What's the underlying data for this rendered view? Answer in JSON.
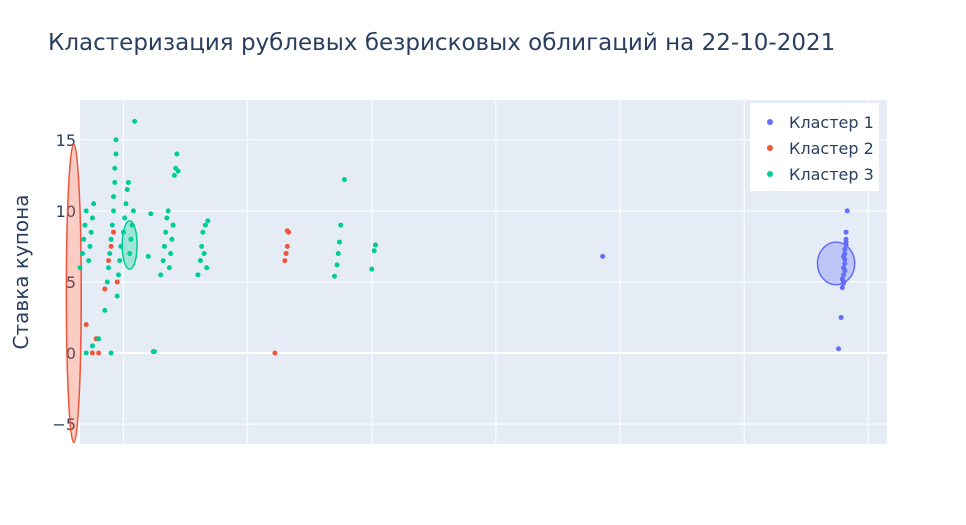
{
  "chart_data": {
    "type": "scatter",
    "title": "Кластеризация рублевых безрисковых облигаций на 22-10-2021",
    "xlabel": "",
    "ylabel": "Ставка купона",
    "xlim": [
      -0.35,
      6.15
    ],
    "ylim": [
      -6.4,
      17.8
    ],
    "x_gridlines": [
      0,
      1,
      2,
      3,
      4,
      5,
      6
    ],
    "x_tick_labels_visible": false,
    "y_ticks": [
      -5,
      0,
      5,
      10,
      15
    ],
    "y_tick_labels": [
      "−5",
      "0",
      "5",
      "10",
      "15"
    ],
    "grid": true,
    "legend_position": "top-right",
    "colors": {
      "plot_background": "#e5ecf6",
      "grid": "#ffffff",
      "text": "#2a3f5f",
      "cluster1": "#636efa",
      "cluster2": "#ef553b",
      "cluster3": "#00cc96"
    },
    "series": [
      {
        "name": "Кластер 1",
        "color": "#636efa",
        "points": [
          [
            3.86,
            6.8
          ],
          [
            5.76,
            0.3
          ],
          [
            5.78,
            2.5
          ],
          [
            5.79,
            4.6
          ],
          [
            5.8,
            5.0
          ],
          [
            5.8,
            5.5
          ],
          [
            5.8,
            6.0
          ],
          [
            5.81,
            6.3
          ],
          [
            5.81,
            6.6
          ],
          [
            5.81,
            7.0
          ],
          [
            5.81,
            7.3
          ],
          [
            5.82,
            7.6
          ],
          [
            5.82,
            8.0
          ],
          [
            5.82,
            8.5
          ],
          [
            5.83,
            10.0
          ],
          [
            5.8,
            6.8
          ],
          [
            5.81,
            5.8
          ],
          [
            5.82,
            7.8
          ],
          [
            5.8,
            4.9
          ],
          [
            5.79,
            5.2
          ]
        ],
        "ellipse": {
          "cx": 5.74,
          "cy": 6.3,
          "rx": 0.15,
          "ry": 1.5
        }
      },
      {
        "name": "Кластер 2",
        "color": "#ef553b",
        "points": [
          [
            -0.55,
            6.5
          ],
          [
            -0.53,
            7.5
          ],
          [
            -0.52,
            9.0
          ],
          [
            -0.51,
            9.5
          ],
          [
            -0.5,
            11.0
          ],
          [
            -0.5,
            8.0
          ],
          [
            -0.49,
            6.8
          ],
          [
            -0.48,
            0.2
          ],
          [
            -0.47,
            0.5
          ],
          [
            -0.47,
            1.0
          ],
          [
            -0.46,
            1.5
          ],
          [
            -0.46,
            2.8
          ],
          [
            -0.45,
            3.5
          ],
          [
            -0.45,
            4.0
          ],
          [
            -0.44,
            4.5
          ],
          [
            -0.44,
            5.2
          ],
          [
            -0.43,
            6.0
          ],
          [
            -0.43,
            7.0
          ],
          [
            -0.42,
            8.0
          ],
          [
            -0.42,
            9.0
          ],
          [
            -0.41,
            10.0
          ],
          [
            -0.41,
            11.0
          ],
          [
            -0.4,
            12.0
          ],
          [
            -0.4,
            13.0
          ],
          [
            -0.39,
            14.0
          ],
          [
            -0.38,
            15.0
          ],
          [
            -0.38,
            11.5
          ],
          [
            -0.39,
            9.5
          ],
          [
            -0.4,
            7.5
          ],
          [
            -0.42,
            5.5
          ],
          [
            -0.45,
            0.0
          ],
          [
            -0.47,
            0.0
          ],
          [
            -0.44,
            0.8
          ],
          [
            -0.43,
            1.2
          ],
          [
            -0.41,
            3.0
          ],
          [
            -0.25,
            0.0
          ],
          [
            -0.22,
            1.0
          ],
          [
            -0.2,
            0.0
          ],
          [
            -0.3,
            2.0
          ],
          [
            -0.12,
            6.5
          ],
          [
            -0.1,
            7.5
          ],
          [
            -0.08,
            8.5
          ],
          [
            -0.05,
            5.0
          ],
          [
            -0.15,
            4.5
          ],
          [
            1.22,
            0.0
          ],
          [
            1.3,
            6.5
          ],
          [
            1.32,
            7.5
          ],
          [
            1.33,
            8.5
          ],
          [
            1.31,
            7.0
          ],
          [
            1.32,
            8.6
          ]
        ],
        "ellipse": {
          "cx": -0.4,
          "cy": 4.2,
          "rx": 0.06,
          "ry": 10.5
        }
      },
      {
        "name": "Кластер 3",
        "color": "#00cc96",
        "points": [
          [
            -0.3,
            0.0
          ],
          [
            -0.25,
            0.5
          ],
          [
            -0.2,
            1.0
          ],
          [
            -0.35,
            6.0
          ],
          [
            -0.33,
            7.0
          ],
          [
            -0.32,
            8.0
          ],
          [
            -0.31,
            9.0
          ],
          [
            -0.3,
            10.0
          ],
          [
            -0.28,
            6.5
          ],
          [
            -0.27,
            7.5
          ],
          [
            -0.26,
            8.5
          ],
          [
            -0.25,
            9.5
          ],
          [
            -0.24,
            10.5
          ],
          [
            -0.15,
            3.0
          ],
          [
            -0.13,
            5.0
          ],
          [
            -0.12,
            6.0
          ],
          [
            -0.11,
            7.0
          ],
          [
            -0.1,
            8.0
          ],
          [
            -0.09,
            9.0
          ],
          [
            -0.08,
            10.0
          ],
          [
            -0.08,
            11.0
          ],
          [
            -0.07,
            12.0
          ],
          [
            -0.07,
            13.0
          ],
          [
            -0.06,
            14.0
          ],
          [
            -0.06,
            15.0
          ],
          [
            -0.1,
            0.0
          ],
          [
            -0.05,
            4.0
          ],
          [
            -0.04,
            5.5
          ],
          [
            -0.03,
            6.5
          ],
          [
            -0.02,
            7.5
          ],
          [
            0.0,
            8.5
          ],
          [
            0.01,
            9.5
          ],
          [
            0.02,
            10.5
          ],
          [
            0.03,
            11.5
          ],
          [
            0.04,
            12.0
          ],
          [
            0.05,
            7.0
          ],
          [
            0.06,
            8.0
          ],
          [
            0.07,
            9.0
          ],
          [
            0.08,
            10.0
          ],
          [
            0.09,
            16.3
          ],
          [
            0.2,
            6.8
          ],
          [
            0.22,
            9.8
          ],
          [
            0.24,
            0.1
          ],
          [
            0.25,
            0.1
          ],
          [
            0.3,
            5.5
          ],
          [
            0.32,
            6.5
          ],
          [
            0.33,
            7.5
          ],
          [
            0.34,
            8.5
          ],
          [
            0.35,
            9.5
          ],
          [
            0.36,
            10.0
          ],
          [
            0.37,
            6.0
          ],
          [
            0.38,
            7.0
          ],
          [
            0.39,
            8.0
          ],
          [
            0.4,
            9.0
          ],
          [
            0.41,
            12.5
          ],
          [
            0.42,
            13.0
          ],
          [
            0.43,
            14.0
          ],
          [
            0.44,
            12.8
          ],
          [
            0.6,
            5.5
          ],
          [
            0.62,
            6.5
          ],
          [
            0.63,
            7.5
          ],
          [
            0.64,
            8.5
          ],
          [
            0.65,
            7.0
          ],
          [
            0.66,
            9.0
          ],
          [
            0.67,
            6.0
          ],
          [
            0.68,
            9.3
          ],
          [
            1.7,
            5.4
          ],
          [
            1.72,
            6.2
          ],
          [
            1.73,
            7.0
          ],
          [
            1.74,
            7.8
          ],
          [
            1.75,
            9.0
          ],
          [
            1.78,
            12.2
          ],
          [
            2.0,
            5.9
          ],
          [
            2.02,
            7.2
          ],
          [
            2.03,
            7.6
          ]
        ],
        "ellipse": {
          "cx": 0.05,
          "cy": 7.6,
          "rx": 0.06,
          "ry": 1.7
        }
      }
    ]
  }
}
